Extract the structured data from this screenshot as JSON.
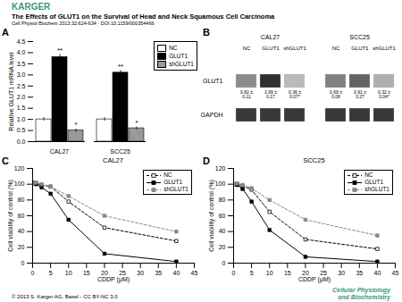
{
  "header": {
    "text": "KARGER",
    "color": "#3a9a7a"
  },
  "title": "The Effects of GLUT1 on the Survival of Head and Neck Squamous Cell Carcinoma",
  "subtitle": "Cell Physiol Biochem 2013;32:624-634 · DOI:10.1159/000354466",
  "footer": {
    "left": "© 2013 S. Karger AG, Basel - CC BY-NC 3.0",
    "right": [
      "Cellular Physiology",
      "and Biochemistry"
    ],
    "color": "#3a9a7a"
  },
  "chart_data": [
    {
      "type": "bar",
      "label": "A",
      "categories": [
        "CAL27",
        "SCC25"
      ],
      "series": [
        {
          "name": "NC",
          "color": "white",
          "values": [
            1.0,
            1.0
          ],
          "errors": [
            0.08,
            0.08
          ]
        },
        {
          "name": "GLUT1",
          "color": "black",
          "values": [
            3.8,
            3.1
          ],
          "errors": [
            0.12,
            0.1
          ]
        },
        {
          "name": "shGLUT1",
          "color": "#999999",
          "values": [
            0.5,
            0.6
          ],
          "errors": [
            0.07,
            0.06
          ]
        }
      ],
      "ylabel": "Relative GLUT1 mRNA level",
      "ylim": [
        0,
        4.5
      ],
      "yticks": [
        {
          "value": 0,
          "label": "0.0"
        },
        0.5,
        {
          "value": 1.0,
          "label": "1.0"
        },
        1.5,
        {
          "value": 2.0,
          "label": "2.0"
        },
        2.5,
        {
          "value": 3.0,
          "label": "3.0"
        },
        3.5,
        {
          "value": 4.0,
          "label": "4.0"
        },
        4.5
      ],
      "legend": "upper right",
      "annotations": [
        {
          "category": "CAL27",
          "series": "GLUT1",
          "text": "**"
        },
        {
          "category": "CAL27",
          "series": "shGLUT1",
          "text": "*"
        },
        {
          "category": "SCC25",
          "series": "GLUT1",
          "text": "**"
        },
        {
          "category": "SCC25",
          "series": "shGLUT1",
          "text": "*"
        }
      ]
    },
    {
      "type": "blot",
      "label": "B",
      "groups": [
        "CAL27",
        "SCC25"
      ],
      "categories": [
        "NC",
        "GLUT1",
        "shGLUT1",
        "NC",
        "GLUT1",
        "shGLUT1"
      ],
      "rows": [
        {
          "name": "GLUT1",
          "gray": [
            0.55,
            0.19,
            0.73,
            0.505,
            0.388,
            0.685
          ],
          "band_labels": [
            "0.82 ± 0.11",
            "3.99 ± 0.17",
            "0.36 ± 0.07*",
            "0.69 ± 0.08",
            "0.91 ± 0.27",
            "0.32 ± 0.04*"
          ]
        },
        {
          "name": "GAPDH",
          "gray": [
            0.22,
            0.22,
            0.22,
            0.22,
            0.22,
            0.22
          ]
        }
      ]
    },
    {
      "type": "line",
      "label": "C",
      "title": "CAL27",
      "xlabel": "CDDP (μM)",
      "ylabel": "Cell viability of control (%)",
      "x": [
        0,
        1,
        2.5,
        5,
        10,
        20,
        40
      ],
      "xlim": [
        0,
        45
      ],
      "xticks": [
        0,
        5,
        10,
        15,
        20,
        25,
        30,
        35,
        40,
        45
      ],
      "ylim": [
        0,
        120
      ],
      "yticks": [
        0,
        20,
        40,
        60,
        80,
        100,
        120
      ],
      "legend": "upper right",
      "series": [
        {
          "name": "NC",
          "color": "black",
          "marker": "open_square",
          "line_style": "dashed",
          "values": [
            102,
            101,
            99,
            97,
            78,
            45,
            28
          ]
        },
        {
          "name": "GLUT1",
          "color": "black",
          "marker": "square",
          "line_style": "solid",
          "values": [
            101,
            100,
            96,
            88,
            55,
            12,
            2
          ]
        },
        {
          "name": "shGLUT1",
          "color": "#888888",
          "marker": "square",
          "line_style": "dashed",
          "values": [
            101,
            102,
            100,
            97,
            85,
            60,
            40
          ]
        }
      ]
    },
    {
      "type": "line",
      "label": "D",
      "title": "SCC25",
      "xlabel": "CDDP (μM)",
      "ylabel": "Cell viability of control (%)",
      "x": [
        0,
        1,
        2.5,
        5,
        10,
        20,
        40
      ],
      "xlim": [
        0,
        45
      ],
      "xticks": [
        0,
        5,
        10,
        15,
        20,
        25,
        30,
        35,
        40,
        45
      ],
      "ylim": [
        0,
        120
      ],
      "yticks": [
        0,
        20,
        40,
        60,
        80,
        100,
        120
      ],
      "legend": "upper right",
      "series": [
        {
          "name": "NC",
          "color": "black",
          "marker": "open_square",
          "line_style": "dashed",
          "values": [
            100,
            100,
            98,
            93,
            65,
            30,
            18
          ]
        },
        {
          "name": "GLUT1",
          "color": "black",
          "marker": "square",
          "line_style": "solid",
          "values": [
            100,
            99,
            94,
            78,
            42,
            8,
            2
          ]
        },
        {
          "name": "shGLUT1",
          "color": "#888888",
          "marker": "square",
          "line_style": "dashed",
          "values": [
            100,
            101,
            99,
            95,
            80,
            55,
            35
          ]
        }
      ]
    }
  ]
}
